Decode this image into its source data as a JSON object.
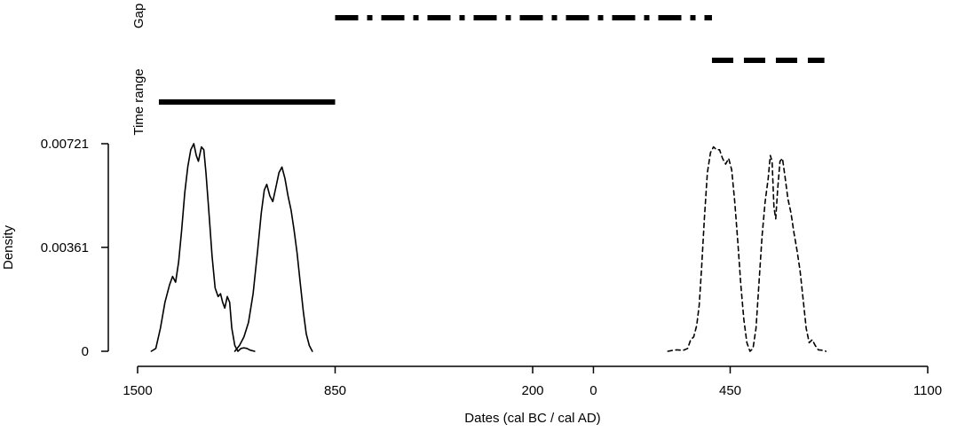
{
  "chart_data": {
    "type": "line",
    "xlabel": "Dates (cal BC / cal AD)",
    "ylabel": "Density",
    "xlim": [
      -1500,
      1100
    ],
    "ylim": [
      0,
      0.00721
    ],
    "x_ticks": [
      {
        "value": -1500,
        "label": "1500"
      },
      {
        "value": -850,
        "label": "850"
      },
      {
        "value": -200,
        "label": "200"
      },
      {
        "value": 0,
        "label": "0"
      },
      {
        "value": 450,
        "label": "450"
      },
      {
        "value": 1100,
        "label": "1100"
      }
    ],
    "y_ticks": [
      {
        "value": 0,
        "label": "0"
      },
      {
        "value": 0.00361,
        "label": "0.00361"
      },
      {
        "value": 0.00721,
        "label": "0.00721"
      }
    ],
    "series": [
      {
        "style": "solid",
        "points": [
          [
            -1455,
            0
          ],
          [
            -1440,
            0.0001
          ],
          [
            -1425,
            0.0008
          ],
          [
            -1410,
            0.0017
          ],
          [
            -1395,
            0.0023
          ],
          [
            -1385,
            0.0026
          ],
          [
            -1375,
            0.0024
          ],
          [
            -1365,
            0.0031
          ],
          [
            -1355,
            0.0042
          ],
          [
            -1345,
            0.0055
          ],
          [
            -1335,
            0.0064
          ],
          [
            -1325,
            0.007
          ],
          [
            -1315,
            0.00721
          ],
          [
            -1307,
            0.0068
          ],
          [
            -1300,
            0.0066
          ],
          [
            -1290,
            0.0071
          ],
          [
            -1282,
            0.007
          ],
          [
            -1275,
            0.0062
          ],
          [
            -1265,
            0.0048
          ],
          [
            -1255,
            0.0033
          ],
          [
            -1245,
            0.0022
          ],
          [
            -1235,
            0.0019
          ],
          [
            -1227,
            0.002
          ],
          [
            -1220,
            0.0017
          ],
          [
            -1213,
            0.0015
          ],
          [
            -1205,
            0.0019
          ],
          [
            -1197,
            0.0017
          ],
          [
            -1190,
            0.0008
          ],
          [
            -1180,
            0.0002
          ],
          [
            -1170,
            0
          ],
          [
            -1160,
            0.0001
          ],
          [
            -1150,
            0.00012
          ],
          [
            -1140,
            0.0001
          ],
          [
            -1130,
            4e-05
          ],
          [
            -1115,
            0
          ]
        ]
      },
      {
        "style": "solid",
        "points": [
          [
            -1180,
            0
          ],
          [
            -1165,
            0.0002
          ],
          [
            -1150,
            0.0005
          ],
          [
            -1135,
            0.001
          ],
          [
            -1120,
            0.002
          ],
          [
            -1105,
            0.0035
          ],
          [
            -1093,
            0.0048
          ],
          [
            -1083,
            0.0056
          ],
          [
            -1075,
            0.0058
          ],
          [
            -1065,
            0.0054
          ],
          [
            -1055,
            0.0052
          ],
          [
            -1045,
            0.0057
          ],
          [
            -1035,
            0.0062
          ],
          [
            -1025,
            0.0064
          ],
          [
            -1015,
            0.006
          ],
          [
            -1005,
            0.0054
          ],
          [
            -995,
            0.0049
          ],
          [
            -985,
            0.0042
          ],
          [
            -975,
            0.0034
          ],
          [
            -965,
            0.0024
          ],
          [
            -955,
            0.0014
          ],
          [
            -945,
            0.0006
          ],
          [
            -935,
            0.0002
          ],
          [
            -925,
            0
          ]
        ]
      },
      {
        "style": "dashed",
        "points": [
          [
            245,
            0
          ],
          [
            260,
            3e-05
          ],
          [
            275,
            5e-05
          ],
          [
            295,
            3e-05
          ],
          [
            310,
            0.0001
          ],
          [
            320,
            0.0004
          ],
          [
            330,
            0.0005
          ],
          [
            340,
            0.0009
          ],
          [
            348,
            0.0016
          ],
          [
            356,
            0.0029
          ],
          [
            365,
            0.0046
          ],
          [
            375,
            0.0062
          ],
          [
            385,
            0.0069
          ],
          [
            395,
            0.0071
          ],
          [
            405,
            0.007
          ],
          [
            415,
            0.007
          ],
          [
            425,
            0.0067
          ],
          [
            435,
            0.0065
          ],
          [
            445,
            0.0067
          ],
          [
            455,
            0.0063
          ],
          [
            465,
            0.0052
          ],
          [
            475,
            0.0038
          ],
          [
            485,
            0.0023
          ],
          [
            495,
            0.0011
          ],
          [
            505,
            0.0003
          ],
          [
            515,
            0
          ],
          [
            525,
            0.0001
          ],
          [
            535,
            0.0008
          ],
          [
            545,
            0.0024
          ],
          [
            555,
            0.004
          ],
          [
            565,
            0.0052
          ],
          [
            575,
            0.006
          ],
          [
            582,
            0.0068
          ],
          [
            588,
            0.0066
          ],
          [
            594,
            0.005
          ],
          [
            600,
            0.0046
          ],
          [
            606,
            0.0056
          ],
          [
            614,
            0.0066
          ],
          [
            622,
            0.0067
          ],
          [
            630,
            0.0061
          ],
          [
            640,
            0.0053
          ],
          [
            650,
            0.0048
          ],
          [
            660,
            0.0041
          ],
          [
            670,
            0.0035
          ],
          [
            680,
            0.0028
          ],
          [
            690,
            0.0018
          ],
          [
            700,
            0.0008
          ],
          [
            710,
            0.0003
          ],
          [
            720,
            0.0004
          ],
          [
            730,
            0.0002
          ],
          [
            740,
            5e-05
          ],
          [
            750,
            4e-05
          ],
          [
            765,
            0
          ]
        ]
      }
    ],
    "bands": {
      "time_range": {
        "label": "Time range",
        "intervals": [
          {
            "from": -1430,
            "to": -850,
            "style": "solid"
          },
          {
            "from": 390,
            "to": 760,
            "style": "dashed"
          }
        ]
      },
      "gap": {
        "label": "Gap",
        "intervals": [
          {
            "from": -850,
            "to": 390,
            "style": "dashdot"
          }
        ]
      }
    }
  }
}
